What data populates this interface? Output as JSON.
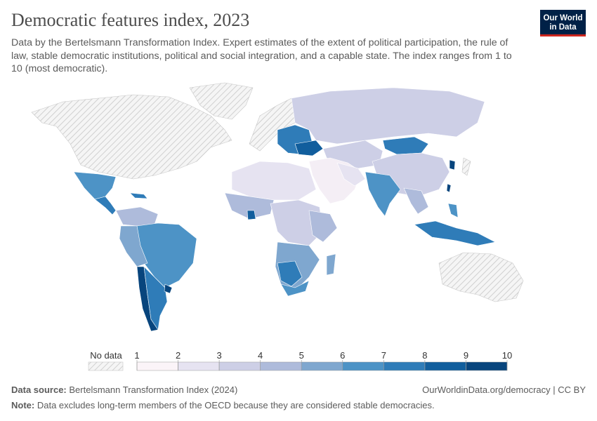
{
  "header": {
    "title": "Democratic features index, 2023",
    "subtitle": "Data by the Bertelsmann Transformation Index. Expert estimates of the extent of political participation, the rule of law, stable democratic institutions, political and social integration, and a capable state. The index ranges from 1 to 10 (most democratic).",
    "logo_line1": "Our World",
    "logo_line2": "in Data"
  },
  "legend": {
    "no_data_label": "No data",
    "ticks": [
      "1",
      "2",
      "3",
      "4",
      "5",
      "6",
      "7",
      "8",
      "9",
      "10"
    ],
    "colors": [
      "#fbf4f8",
      "#e6e3f1",
      "#cdcfe6",
      "#aebbdb",
      "#7fa7cf",
      "#4d93c6",
      "#2f7cb8",
      "#115e9d",
      "#08457d"
    ]
  },
  "footer": {
    "source_label": "Data source:",
    "source_text": "Bertelsmann Transformation Index (2024)",
    "url": "OurWorldinData.org/democracy | CC BY",
    "note_label": "Note:",
    "note_text": "Data excludes long-term members of the OECD because they are considered stable democracies."
  }
}
